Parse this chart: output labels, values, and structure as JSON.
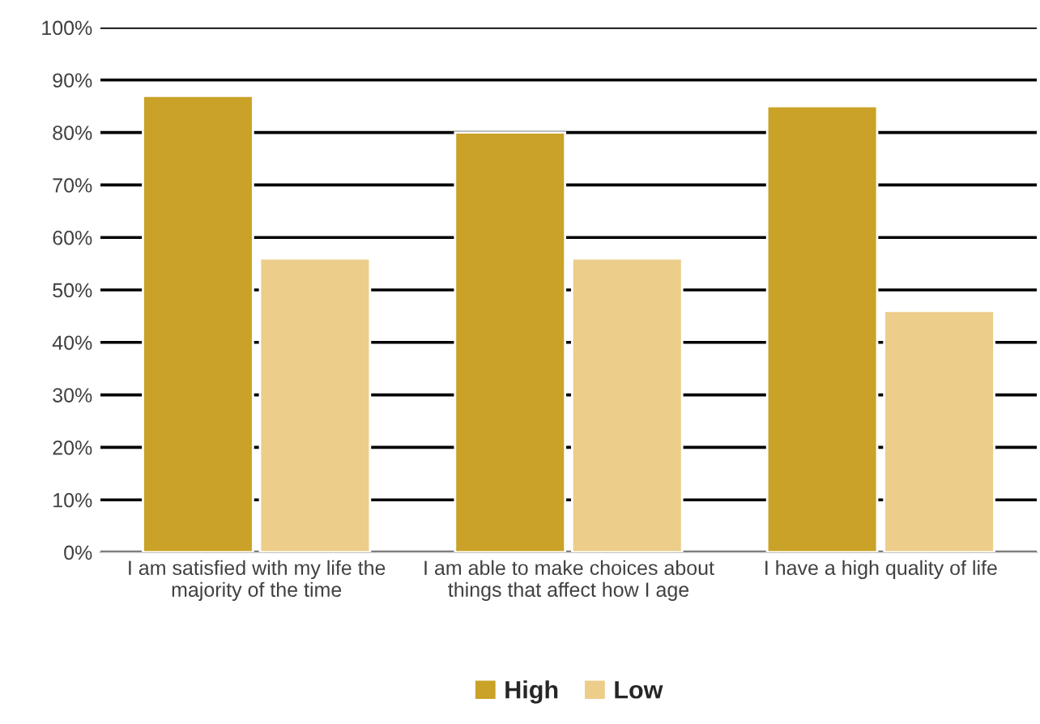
{
  "chart_data": {
    "type": "bar",
    "categories": [
      "I am satisfied with my life the majority of the time",
      "I am able to make choices about things that affect how I age",
      "I have a high quality of life"
    ],
    "series": [
      {
        "name": "High",
        "color": "#c9a227",
        "values": [
          87,
          80,
          85
        ]
      },
      {
        "name": "Low",
        "color": "#eccd8a",
        "values": [
          56,
          56,
          46
        ]
      }
    ],
    "ylim": [
      0,
      100
    ],
    "yticks": [
      {
        "value": 0,
        "label": "0%"
      },
      {
        "value": 10,
        "label": "10%"
      },
      {
        "value": 20,
        "label": "20%"
      },
      {
        "value": 30,
        "label": "30%"
      },
      {
        "value": 40,
        "label": "40%"
      },
      {
        "value": 50,
        "label": "50%"
      },
      {
        "value": 60,
        "label": "60%"
      },
      {
        "value": 70,
        "label": "70%"
      },
      {
        "value": 80,
        "label": "80%"
      },
      {
        "value": 90,
        "label": "90%"
      },
      {
        "value": 100,
        "label": "100%"
      }
    ],
    "grid": "y",
    "legend": "bottom"
  }
}
